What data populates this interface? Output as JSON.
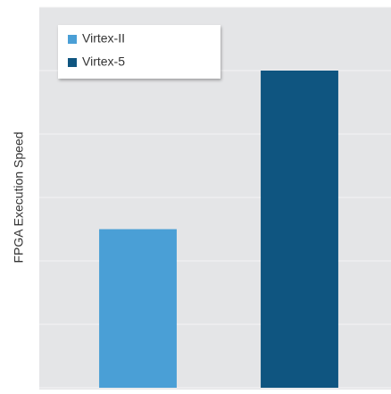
{
  "chart_data": {
    "type": "bar",
    "y_label": "FPGA Execution Speed",
    "categories": [
      null,
      null
    ],
    "series": [
      {
        "name": "Virtex-II",
        "color": "#4a9fd6",
        "values": [
          2.5,
          null
        ]
      },
      {
        "name": "Virtex-5",
        "color": "#0f5580",
        "values": [
          null,
          5
        ]
      }
    ],
    "ylim": [
      0,
      6
    ],
    "yticks": [
      0,
      1,
      2,
      3,
      4,
      5,
      6
    ],
    "grid": true,
    "legend": "upper left"
  }
}
